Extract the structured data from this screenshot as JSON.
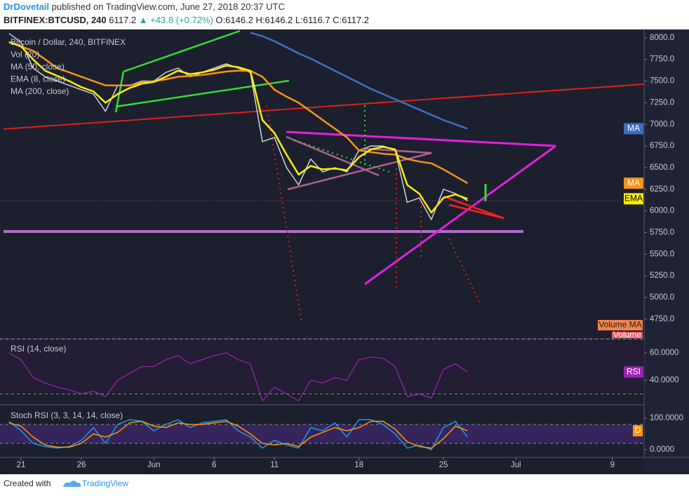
{
  "header": {
    "author": "DrDovetail",
    "published": "published on TradingView.com, June 27, 2018 20:37 UTC",
    "symbol": "BITFINEX:BTCUSD, 240",
    "last": "6117.2",
    "change": "▲ +43.8 (+0.72%)",
    "ohlc": "O:6146.2 H:6146.2 L:6116.7 C:6117.2"
  },
  "chart_data": [
    {
      "type": "line",
      "volume_label": "Vol (20)",
      "volume_badges": [
        "Volume MA",
        "Volume"
      ],
      "categories": [
        null,
        "21",
        null,
        null,
        null,
        null,
        "26",
        null,
        null,
        null,
        null,
        null,
        "Jun",
        null,
        null,
        null,
        null,
        "6",
        null,
        null,
        null,
        null,
        "11",
        null,
        null,
        null,
        null,
        null,
        null,
        "18",
        null,
        null,
        null,
        null,
        null,
        null,
        "25",
        null,
        null,
        null,
        null,
        null,
        "Jul",
        null,
        null,
        null,
        null,
        null,
        null,
        null,
        "9",
        null,
        null
      ],
      "ylim": [
        4530,
        8080
      ],
      "yticks": [
        {
          "value": 4750,
          "label": "4750.0"
        },
        {
          "value": 5000,
          "label": "5000.0"
        },
        {
          "value": 5250,
          "label": "5250.0"
        },
        {
          "value": 5500,
          "label": "5500.0"
        },
        {
          "value": 5750,
          "label": "5750.0"
        },
        {
          "value": 6000,
          "label": "6000.0"
        },
        {
          "value": 6250,
          "label": "6250.0"
        },
        {
          "value": 6500,
          "label": "6500.0"
        },
        {
          "value": 6750,
          "label": "6750.0"
        },
        {
          "value": 7000,
          "label": "7000.0"
        },
        {
          "value": 7250,
          "label": "7250.0"
        },
        {
          "value": 7500,
          "label": "7500.0"
        },
        {
          "value": 7750,
          "label": "7750.0"
        },
        {
          "value": 8000,
          "label": "8000.0"
        }
      ],
      "series": [
        {
          "name": "Bitcoin / Dollar, 240, BITFINEX",
          "color": "#d0d3da",
          "values": [
            8050,
            7950,
            7650,
            7550,
            7500,
            7450,
            7400,
            7350,
            7150,
            7450,
            7450,
            7500,
            7500,
            7600,
            7650,
            7550,
            7600,
            7650,
            7700,
            7650,
            7600,
            6800,
            6850,
            6500,
            6300,
            6600,
            6450,
            6500,
            6450,
            6700,
            6750,
            6750,
            6700,
            6100,
            6150,
            5900,
            6250,
            6200,
            6117.2,
            null,
            null,
            null,
            null,
            null,
            null,
            null,
            null,
            null,
            null,
            null,
            null,
            null,
            null
          ]
        },
        {
          "name": "MA (50, close)",
          "color": "#f7931a",
          "badge": "MA",
          "values": [
            7950,
            7900,
            7850,
            7750,
            7650,
            7600,
            7550,
            7500,
            7450,
            7450,
            7450,
            7480,
            7500,
            7520,
            7550,
            7560,
            7570,
            7590,
            7610,
            7620,
            7620,
            7550,
            7400,
            7320,
            7250,
            7150,
            7050,
            6950,
            6850,
            6700,
            6680,
            6660,
            6650,
            6600,
            6570,
            6550,
            6480,
            6400,
            6320,
            null,
            null,
            null,
            null,
            null,
            null,
            null,
            null,
            null,
            null,
            null,
            null,
            null,
            null
          ]
        },
        {
          "name": "EMA (8, close)",
          "color": "#ffee00",
          "badge": "EMA",
          "values": [
            7950,
            7900,
            7750,
            7620,
            7560,
            7500,
            7430,
            7380,
            7250,
            7350,
            7420,
            7470,
            7490,
            7550,
            7620,
            7580,
            7600,
            7630,
            7680,
            7660,
            7620,
            7050,
            6900,
            6650,
            6420,
            6520,
            6480,
            6490,
            6470,
            6620,
            6710,
            6740,
            6710,
            6300,
            6200,
            5980,
            6150,
            6190,
            6140,
            null,
            null,
            null,
            null,
            null,
            null,
            null,
            null,
            null,
            null,
            null,
            null,
            null,
            null
          ]
        },
        {
          "name": "MA (200, close)",
          "color": "#3f6fc1",
          "badge": "MA",
          "values": [
            null,
            null,
            null,
            null,
            null,
            null,
            null,
            null,
            null,
            null,
            null,
            null,
            null,
            null,
            null,
            null,
            null,
            null,
            null,
            null,
            8060,
            8020,
            7960,
            7890,
            7820,
            7760,
            7690,
            7620,
            7550,
            7480,
            7410,
            7350,
            7290,
            7230,
            7170,
            7110,
            7050,
            7000,
            6950,
            null,
            null,
            null,
            null,
            null,
            null,
            null,
            null,
            null,
            null,
            null,
            null,
            null,
            null
          ]
        }
      ]
    },
    {
      "type": "line",
      "title": "RSI (14, close)",
      "color": "#9c27b0",
      "badge": "RSI",
      "ylim": [
        22.6,
        69.7
      ],
      "levels": [
        70,
        30
      ],
      "yticks": [
        {
          "value": 40,
          "label": "40.0000"
        },
        {
          "value": 60,
          "label": "60.0000"
        }
      ],
      "values": [
        60,
        55,
        42,
        38,
        35,
        33,
        30,
        32,
        28,
        40,
        45,
        50,
        50,
        55,
        58,
        52,
        55,
        58,
        60,
        55,
        52,
        25,
        35,
        30,
        25,
        40,
        38,
        42,
        40,
        55,
        57,
        56,
        50,
        28,
        30,
        27,
        48,
        52,
        46,
        null,
        null,
        null,
        null,
        null,
        null,
        null,
        null,
        null,
        null,
        null,
        null,
        null,
        null
      ]
    },
    {
      "type": "line",
      "title": "Stoch RSI (3, 3, 14, 14, close)",
      "badge": "D",
      "ylim": [
        -20,
        137.8
      ],
      "levels": [
        80,
        20
      ],
      "yticks": [
        {
          "value": 0,
          "label": "0.0000"
        },
        {
          "value": 100,
          "label": "100.0000"
        }
      ],
      "series": [
        {
          "color": "#2196f3",
          "values": [
            90,
            60,
            20,
            10,
            5,
            10,
            30,
            70,
            20,
            80,
            95,
            90,
            60,
            80,
            95,
            70,
            85,
            90,
            95,
            60,
            40,
            5,
            30,
            15,
            5,
            70,
            60,
            85,
            40,
            95,
            95,
            80,
            50,
            5,
            15,
            0,
            70,
            90,
            40,
            null,
            null,
            null,
            null,
            null,
            null,
            null,
            null,
            null,
            null,
            null,
            null,
            null,
            null
          ]
        },
        {
          "color": "#ff9800",
          "values": [
            85,
            75,
            40,
            15,
            8,
            8,
            20,
            50,
            40,
            55,
            85,
            90,
            75,
            70,
            85,
            80,
            80,
            85,
            90,
            75,
            50,
            20,
            15,
            20,
            10,
            40,
            55,
            70,
            60,
            70,
            90,
            90,
            65,
            25,
            10,
            5,
            35,
            75,
            60,
            null,
            null,
            null,
            null,
            null,
            null,
            null,
            null,
            null,
            null,
            null,
            null,
            null,
            null
          ]
        }
      ]
    }
  ],
  "footer": {
    "created_with": "Created with",
    "brand": "TradingView"
  }
}
